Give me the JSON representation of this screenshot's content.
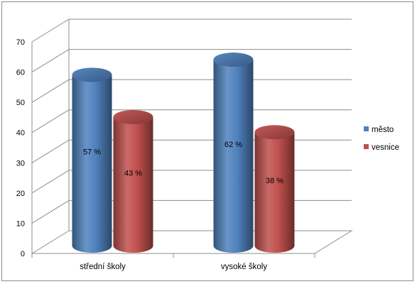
{
  "chart_data": {
    "type": "bar",
    "style": "3d-cylinder",
    "categories": [
      "střední školy",
      "vysoké školy"
    ],
    "series": [
      {
        "name": "město",
        "values": [
          57,
          62
        ],
        "labels": [
          "57 %",
          "62 %"
        ],
        "color": "#4f81bd"
      },
      {
        "name": "vesnice",
        "values": [
          43,
          38
        ],
        "labels": [
          "43 %",
          "38 %"
        ],
        "color": "#c0504d"
      }
    ],
    "ylim": [
      0,
      70
    ],
    "yticks": [
      0,
      10,
      20,
      30,
      40,
      50,
      60,
      70
    ],
    "grid": true,
    "legend": "right"
  }
}
